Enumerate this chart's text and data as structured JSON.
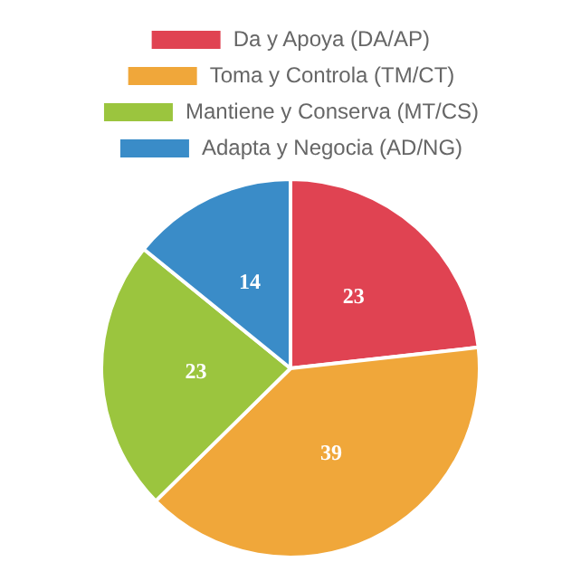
{
  "chart_data": {
    "type": "pie",
    "categories": [
      "Da y Apoya (DA/AP)",
      "Toma y Controla (TM/CT)",
      "Mantiene y Conserva (MT/CS)",
      "Adapta y Negocia (AD/NG)"
    ],
    "values": [
      23,
      39,
      23,
      14
    ],
    "colors": [
      "#e04352",
      "#f0a73a",
      "#9bc53e",
      "#3a8cc8"
    ],
    "data_labels": true,
    "legend": "top"
  }
}
